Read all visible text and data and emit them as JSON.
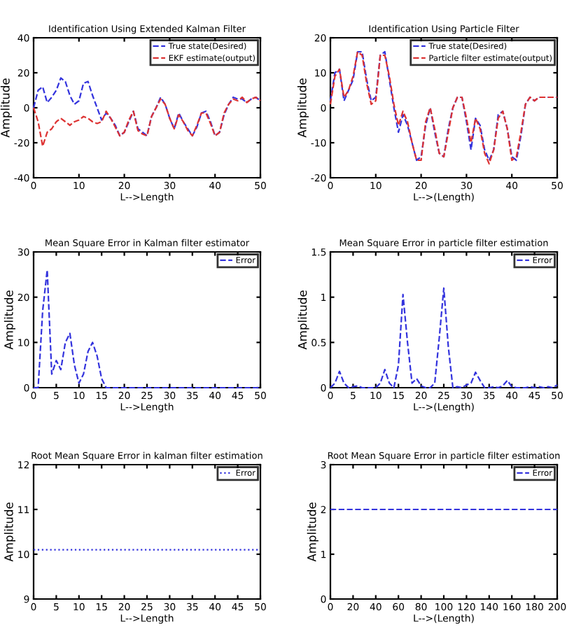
{
  "chart_data": [
    {
      "type": "line",
      "title": "Identification Using Extended Kalman Filter",
      "xlabel": "L-->Length",
      "ylabel": "Amplitude",
      "x": [
        0,
        1,
        2,
        3,
        4,
        5,
        6,
        7,
        8,
        9,
        10,
        11,
        12,
        13,
        14,
        15,
        16,
        17,
        18,
        19,
        20,
        21,
        22,
        23,
        24,
        25,
        26,
        27,
        28,
        29,
        30,
        31,
        32,
        33,
        34,
        35,
        36,
        37,
        38,
        39,
        40,
        41,
        42,
        43,
        44,
        45,
        46,
        47,
        48,
        49,
        50
      ],
      "xlim": [
        0,
        50
      ],
      "ylim": [
        -40,
        40
      ],
      "xticks": [
        0,
        10,
        20,
        30,
        40,
        50
      ],
      "yticks": [
        -40,
        -20,
        0,
        20,
        40
      ],
      "legend": "top right",
      "line_style": "dashed",
      "series": [
        {
          "name": "True state(Desired)",
          "color": "#3333dd",
          "values": [
            0,
            10,
            12,
            3,
            6,
            10,
            17,
            15,
            7,
            2,
            4,
            14,
            15,
            7,
            0,
            -7,
            -3,
            -6,
            -10,
            -16,
            -14,
            -8,
            -2,
            -12,
            -14,
            -16,
            -5,
            0,
            6,
            2,
            -6,
            -12,
            -3,
            -8,
            -12,
            -16,
            -11,
            -3,
            -2,
            -8,
            -16,
            -14,
            -4,
            2,
            6,
            5,
            5,
            3,
            5,
            6,
            4
          ]
        },
        {
          "name": "EKF estimate(output)",
          "color": "#dd3333",
          "values": [
            0,
            -8,
            -22,
            -14,
            -12,
            -8,
            -6,
            -8,
            -10,
            -8,
            -7,
            -5,
            -6,
            -8,
            -9,
            -8,
            -2,
            -6,
            -11,
            -16,
            -14,
            -7,
            -2,
            -13,
            -15,
            -16,
            -5,
            0,
            5,
            2,
            -6,
            -12,
            -4,
            -8,
            -13,
            -16,
            -10,
            -3,
            -3,
            -9,
            -16,
            -14,
            -3,
            2,
            5,
            4,
            6,
            3,
            5,
            6,
            4
          ]
        }
      ]
    },
    {
      "type": "line",
      "title": "Identification Using Particle Filter",
      "xlabel": "L-->(Length)",
      "ylabel": "Amplitude",
      "x": [
        0,
        1,
        2,
        3,
        4,
        5,
        6,
        7,
        8,
        9,
        10,
        11,
        12,
        13,
        14,
        15,
        16,
        17,
        18,
        19,
        20,
        21,
        22,
        23,
        24,
        25,
        26,
        27,
        28,
        29,
        30,
        31,
        32,
        33,
        34,
        35,
        36,
        37,
        38,
        39,
        40,
        41,
        42,
        43,
        44,
        45,
        46,
        47,
        48,
        49,
        50
      ],
      "xlim": [
        0,
        50
      ],
      "ylim": [
        -20,
        20
      ],
      "xticks": [
        0,
        10,
        20,
        30,
        40,
        50
      ],
      "yticks": [
        -20,
        -10,
        0,
        10,
        20
      ],
      "legend": "top right",
      "line_style": "dashed",
      "series": [
        {
          "name": "True state(Desired)",
          "color": "#3333dd",
          "values": [
            2,
            10,
            11,
            2,
            5,
            8,
            16,
            16,
            8,
            2,
            3,
            15,
            16,
            8,
            0,
            -7,
            -2,
            -5,
            -10,
            -15,
            -14,
            -5,
            0,
            -7,
            -13,
            -14,
            -6,
            0,
            3,
            3,
            -4,
            -12,
            -3,
            -5,
            -12,
            -15,
            -12,
            -2,
            -1,
            -6,
            -14,
            -15,
            -8,
            1,
            3,
            2,
            3,
            3,
            3,
            3,
            3
          ]
        },
        {
          "name": "Particle filter estimate(output)",
          "color": "#dd3333",
          "values": [
            1,
            9,
            11,
            3,
            5,
            9,
            16,
            15,
            7,
            1,
            2,
            15,
            15,
            9,
            1,
            -5,
            -1,
            -4,
            -10,
            -15,
            -15,
            -4,
            0,
            -6,
            -13,
            -14,
            -7,
            0,
            3,
            3,
            -3,
            -10,
            -3,
            -6,
            -13,
            -16,
            -12,
            -3,
            -1,
            -6,
            -15,
            -14,
            -7,
            1,
            3,
            2,
            3,
            3,
            3,
            3,
            3
          ]
        }
      ]
    },
    {
      "type": "line",
      "title": "Mean Square Error in Kalman filter estimator",
      "xlabel": "L-->Length",
      "ylabel": "Amplitude",
      "x": [
        0,
        1,
        2,
        3,
        4,
        5,
        6,
        7,
        8,
        9,
        10,
        11,
        12,
        13,
        14,
        15,
        16,
        17,
        18,
        19,
        20,
        21,
        22,
        23,
        24,
        25,
        26,
        27,
        28,
        29,
        30,
        31,
        32,
        33,
        34,
        35,
        36,
        37,
        38,
        39,
        40,
        41,
        42,
        43,
        44,
        45,
        46,
        47,
        48,
        49,
        50
      ],
      "xlim": [
        0,
        50
      ],
      "ylim": [
        0,
        30
      ],
      "xticks": [
        0,
        5,
        10,
        15,
        20,
        25,
        30,
        35,
        40,
        45,
        50
      ],
      "yticks": [
        0,
        10,
        20,
        30
      ],
      "legend": "top right",
      "line_style": "dashed",
      "series": [
        {
          "name": "Error",
          "color": "#3333dd",
          "values": [
            0,
            0,
            17,
            26,
            3,
            6,
            4,
            10,
            12,
            5,
            1,
            3,
            8,
            10,
            7,
            2,
            0,
            0,
            0,
            0,
            0,
            0,
            0,
            0,
            0,
            0,
            0,
            0,
            0,
            0,
            0,
            0,
            0,
            0,
            0,
            0,
            0,
            0,
            0,
            0,
            0,
            0,
            0,
            0,
            0,
            0,
            0,
            0,
            0,
            0,
            0
          ]
        }
      ]
    },
    {
      "type": "line",
      "title": "Mean Square Error in particle filter estimation",
      "xlabel": "L-->(Length)",
      "ylabel": "Amplitude",
      "x": [
        0,
        1,
        2,
        3,
        4,
        5,
        6,
        7,
        8,
        9,
        10,
        11,
        12,
        13,
        14,
        15,
        16,
        17,
        18,
        19,
        20,
        21,
        22,
        23,
        24,
        25,
        26,
        27,
        28,
        29,
        30,
        31,
        32,
        33,
        34,
        35,
        36,
        37,
        38,
        39,
        40,
        41,
        42,
        43,
        44,
        45,
        46,
        47,
        48,
        49,
        50
      ],
      "xlim": [
        0,
        50
      ],
      "ylim": [
        0,
        1.5
      ],
      "xticks": [
        0,
        5,
        10,
        15,
        20,
        25,
        30,
        35,
        40,
        45,
        50
      ],
      "yticks": [
        0,
        0.5,
        1,
        1.5
      ],
      "legend": "top right",
      "line_style": "dashed",
      "series": [
        {
          "name": "Error",
          "color": "#3333dd",
          "values": [
            0,
            0.05,
            0.18,
            0.05,
            0,
            0.01,
            0.02,
            0,
            0,
            0,
            0,
            0.05,
            0.2,
            0.05,
            0,
            0.25,
            1.03,
            0.5,
            0.05,
            0.1,
            0.02,
            0,
            0,
            0.05,
            0.55,
            1.1,
            0.45,
            0,
            0.01,
            0,
            0.03,
            0.05,
            0.17,
            0.08,
            0,
            0,
            0.01,
            0,
            0.02,
            0.08,
            0.01,
            0,
            0,
            0,
            0.01,
            0,
            0.01,
            0,
            0.01,
            0,
            0.03
          ]
        }
      ]
    },
    {
      "type": "line",
      "title": "Root Mean Square Error in kalman filter estimation",
      "xlabel": "L-->Length",
      "ylabel": "Amplitude",
      "x": [
        0,
        1,
        2,
        3,
        4,
        5,
        6,
        7,
        8,
        9,
        10,
        11,
        12,
        13,
        14,
        15,
        16,
        17,
        18,
        19,
        20,
        21,
        22,
        23,
        24,
        25,
        26,
        27,
        28,
        29,
        30,
        31,
        32,
        33,
        34,
        35,
        36,
        37,
        38,
        39,
        40,
        41,
        42,
        43,
        44,
        45,
        46,
        47,
        48,
        49,
        50
      ],
      "xlim": [
        0,
        50
      ],
      "ylim": [
        9,
        12
      ],
      "xticks": [
        0,
        5,
        10,
        15,
        20,
        25,
        30,
        35,
        40,
        45,
        50
      ],
      "yticks": [
        9,
        10,
        11,
        12
      ],
      "legend": "top right",
      "line_style": "dotted",
      "series": [
        {
          "name": "Error",
          "color": "#3333dd",
          "values": [
            10.1,
            10.1,
            10.1,
            10.1,
            10.1,
            10.1,
            10.1,
            10.1,
            10.1,
            10.1,
            10.1,
            10.1,
            10.1,
            10.1,
            10.1,
            10.1,
            10.1,
            10.1,
            10.1,
            10.1,
            10.1,
            10.1,
            10.1,
            10.1,
            10.1,
            10.1,
            10.1,
            10.1,
            10.1,
            10.1,
            10.1,
            10.1,
            10.1,
            10.1,
            10.1,
            10.1,
            10.1,
            10.1,
            10.1,
            10.1,
            10.1,
            10.1,
            10.1,
            10.1,
            10.1,
            10.1,
            10.1,
            10.1,
            10.1,
            10.1,
            10.1
          ]
        }
      ]
    },
    {
      "type": "line",
      "title": "Root Mean Square Error in particle filter estimation",
      "xlabel": "L-->(Length)",
      "ylabel": "Amplitude",
      "x": [
        0,
        10,
        20,
        30,
        40,
        50,
        60,
        70,
        80,
        90,
        100,
        110,
        120,
        130,
        140,
        150,
        160,
        170,
        180,
        190,
        200
      ],
      "xlim": [
        0,
        200
      ],
      "ylim": [
        0,
        3
      ],
      "xticks": [
        0,
        20,
        40,
        60,
        80,
        100,
        120,
        140,
        160,
        180,
        200
      ],
      "yticks": [
        0,
        1,
        2,
        3
      ],
      "legend": "top right",
      "line_style": "dashed",
      "series": [
        {
          "name": "Error",
          "color": "#3333dd",
          "values": [
            2,
            2,
            2,
            2,
            2,
            2,
            2,
            2,
            2,
            2,
            2,
            2,
            2,
            2,
            2,
            2,
            2,
            2,
            2,
            2,
            2
          ]
        }
      ]
    }
  ]
}
